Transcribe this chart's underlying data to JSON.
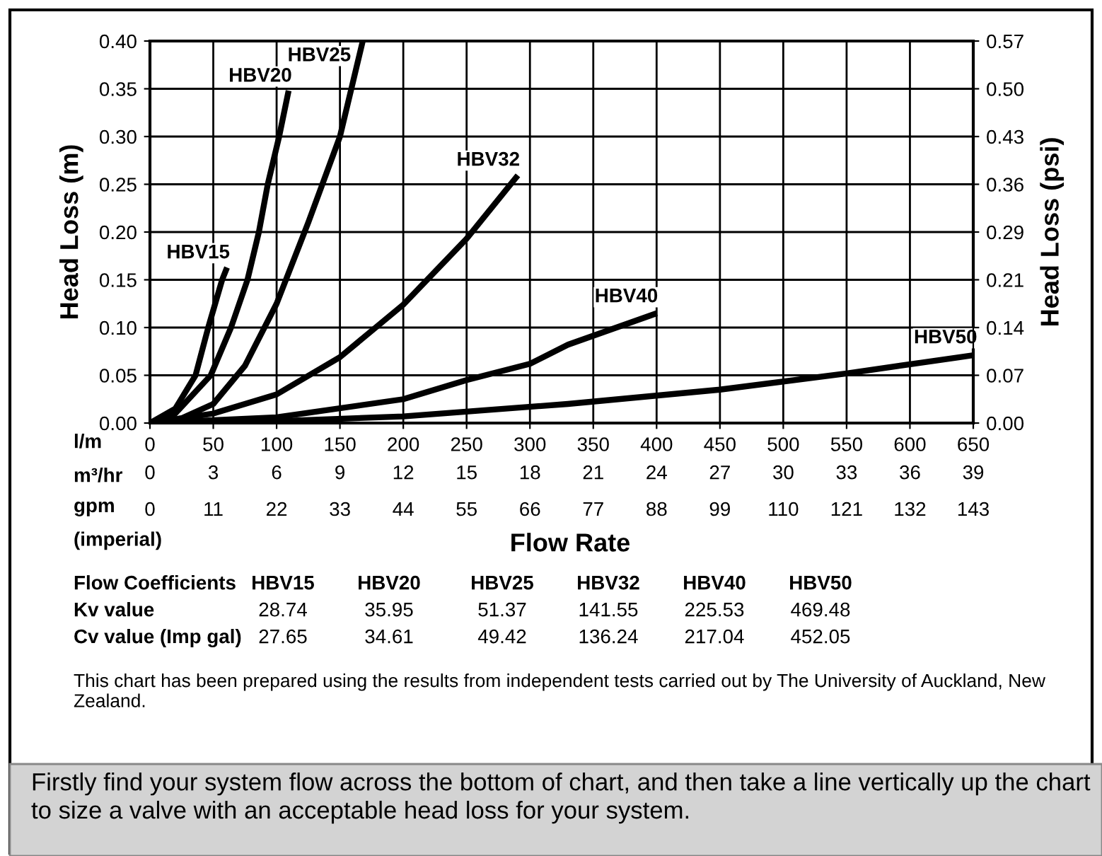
{
  "chart_data": {
    "type": "line",
    "xlabel": "Flow Rate",
    "ylabel": "Head Loss (m)",
    "y2label": "Head Loss (psi)",
    "xlim": [
      0,
      650
    ],
    "xticks": [
      0,
      50,
      100,
      150,
      200,
      250,
      300,
      350,
      400,
      450,
      500,
      550,
      600,
      650
    ],
    "x2label": "m³/hr",
    "x2lim": [
      0,
      39
    ],
    "x2ticks": [
      0,
      3,
      6,
      9,
      12,
      15,
      18,
      21,
      24,
      27,
      30,
      33,
      36,
      39
    ],
    "ylim": [
      0,
      0.4
    ],
    "yticks": [
      {
        "value": 0,
        "label": "0.00"
      },
      {
        "value": 0.05,
        "label": "0.05"
      },
      {
        "value": 0.1,
        "label": "0.10"
      },
      {
        "value": 0.15,
        "label": "0.15"
      },
      {
        "value": 0.2,
        "label": "0.20"
      },
      {
        "value": 0.25,
        "label": "0.25"
      },
      {
        "value": 0.3,
        "label": "0.30"
      },
      {
        "value": 0.35,
        "label": "0.35"
      },
      {
        "value": 0.4,
        "label": "0.40"
      }
    ],
    "y2lim": [
      0,
      0.57
    ],
    "y2ticks": [
      {
        "value": 0,
        "label": "0.00"
      },
      {
        "value": 0.07125,
        "label": "0.07"
      },
      {
        "value": 0.1425,
        "label": "0.14"
      },
      {
        "value": 0.21375,
        "label": "0.21"
      },
      {
        "value": 0.285,
        "label": "0.29"
      },
      {
        "value": 0.35625,
        "label": "0.36"
      },
      {
        "value": 0.4275,
        "label": "0.43"
      },
      {
        "value": 0.49875,
        "label": "0.50"
      },
      {
        "value": 0.57,
        "label": "0.57"
      }
    ],
    "grid": true,
    "marker": "none",
    "line_style": "solid",
    "series": [
      {
        "name": "HBV15",
        "color": "#000000",
        "x": [
          0,
          20,
          36,
          46,
          57,
          60
        ],
        "values": [
          0,
          0.015,
          0.05,
          0.1,
          0.15,
          0.16
        ]
      },
      {
        "name": "HBV20",
        "color": "#000000",
        "x": [
          0,
          20,
          48,
          64,
          77,
          86,
          93,
          102,
          109
        ],
        "values": [
          0,
          0.01,
          0.05,
          0.1,
          0.15,
          0.2,
          0.25,
          0.3,
          0.345
        ]
      },
      {
        "name": "HBV25",
        "color": "#000000",
        "x": [
          0,
          25,
          50,
          75,
          100,
          125,
          150,
          168
        ],
        "values": [
          0,
          0.005,
          0.02,
          0.06,
          0.125,
          0.21,
          0.3,
          0.4
        ]
      },
      {
        "name": "HBV32",
        "color": "#000000",
        "x": [
          0,
          50,
          100,
          150,
          200,
          250,
          289
        ],
        "values": [
          0,
          0.01,
          0.03,
          0.069,
          0.124,
          0.193,
          0.257
        ]
      },
      {
        "name": "HBV40",
        "color": "#000000",
        "x": [
          0,
          100,
          200,
          250,
          300,
          330,
          398
        ],
        "values": [
          0,
          0.006,
          0.025,
          0.045,
          0.062,
          0.082,
          0.114
        ]
      },
      {
        "name": "HBV50",
        "color": "#000000",
        "x": [
          0,
          100,
          200,
          330,
          450,
          550,
          650
        ],
        "values": [
          0,
          0.002,
          0.007,
          0.02,
          0.035,
          0.052,
          0.071
        ]
      }
    ],
    "annotations": [
      "l/m",
      "gpm\n(imperial)",
      "0",
      "11",
      "22",
      "33",
      "44",
      "55",
      "66",
      "77",
      "88",
      "99",
      "110",
      "121",
      "132",
      "143",
      "Flow Coefficients",
      "HBV15",
      "HBV20",
      "HBV25",
      "HBV32",
      "HBV40",
      "HBV50",
      "Kv value",
      "28.74",
      "35.95",
      "51.37",
      "141.55",
      "225.53",
      "469.48",
      "Cv value (Imp gal)",
      "27.65",
      "34.61",
      "49.42",
      "136.24",
      "217.04",
      "452.05",
      "This chart has been prepared using the results from independent tests carried out by The University of Auckland, New Zealand.",
      "Firstly find your system flow across the bottom of chart, and then take a line vertically up the chart to size a valve with an acceptable head loss for your system."
    ]
  }
}
